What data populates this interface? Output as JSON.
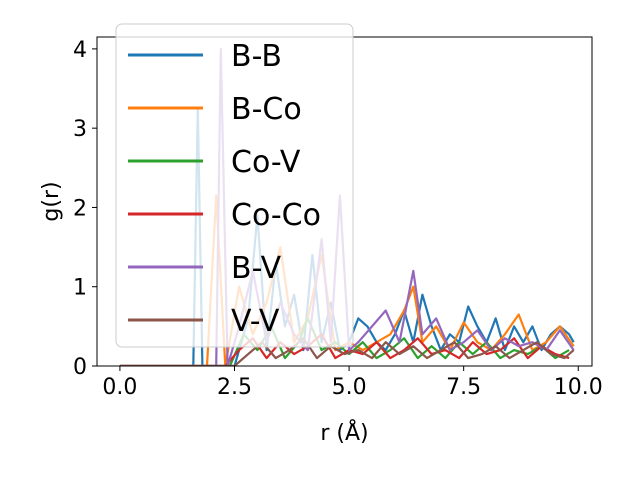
{
  "chart_data": {
    "type": "line",
    "title": "",
    "xlabel": "r (Å)",
    "ylabel": "g(r)",
    "xlim": [
      -0.5,
      10.3
    ],
    "ylim": [
      0,
      4.15
    ],
    "x_ticks": [
      0.0,
      2.5,
      5.0,
      7.5,
      10.0
    ],
    "x_tick_labels": [
      "0.0",
      "2.5",
      "5.0",
      "7.5",
      "10.0"
    ],
    "y_ticks": [
      0,
      1,
      2,
      3,
      4
    ],
    "y_tick_labels": [
      "0",
      "1",
      "2",
      "3",
      "4"
    ],
    "grid": false,
    "legend_position": "top-left",
    "series": [
      {
        "name": "B-B",
        "color": "#1f77b4",
        "x": [
          0,
          1.6,
          1.7,
          1.8,
          2.0,
          2.2,
          2.5,
          2.8,
          3.0,
          3.2,
          3.4,
          3.6,
          3.8,
          4.0,
          4.2,
          4.4,
          4.6,
          4.8,
          5.0,
          5.2,
          5.4,
          5.6,
          5.8,
          6.0,
          6.2,
          6.4,
          6.6,
          6.8,
          7.0,
          7.2,
          7.4,
          7.6,
          7.8,
          8.0,
          8.2,
          8.4,
          8.6,
          8.8,
          9.0,
          9.2,
          9.4,
          9.6,
          9.8,
          9.9
        ],
        "y": [
          0,
          0,
          3.25,
          0,
          0,
          0,
          0,
          0.6,
          1.9,
          0.2,
          1.3,
          0.5,
          0.9,
          0.2,
          1.4,
          0.3,
          0.8,
          0.2,
          0.3,
          0.6,
          0.5,
          0.3,
          0.2,
          0.4,
          0.7,
          0.3,
          0.9,
          0.5,
          0.2,
          0.4,
          0.3,
          0.75,
          0.5,
          0.3,
          0.6,
          0.2,
          0.5,
          0.3,
          0.5,
          0.2,
          0.4,
          0.5,
          0.4,
          0.3
        ]
      },
      {
        "name": "B-Co",
        "color": "#ff7f0e",
        "x": [
          0,
          1.9,
          2.1,
          2.3,
          2.6,
          2.9,
          3.2,
          3.5,
          3.8,
          4.1,
          4.4,
          4.7,
          5.0,
          5.3,
          5.6,
          5.9,
          6.2,
          6.4,
          6.6,
          6.9,
          7.2,
          7.5,
          7.8,
          8.1,
          8.4,
          8.7,
          9.0,
          9.3,
          9.6,
          9.9
        ],
        "y": [
          0,
          0,
          2.15,
          0,
          1.0,
          0.4,
          0.8,
          1.5,
          0.3,
          0.6,
          1.4,
          0.2,
          0.3,
          0.2,
          0.3,
          0.4,
          0.7,
          1.0,
          0.3,
          0.5,
          0.2,
          0.55,
          0.3,
          0.2,
          0.4,
          0.65,
          0.2,
          0.3,
          0.5,
          0.25
        ]
      },
      {
        "name": "Co-V",
        "color": "#2ca02c",
        "x": [
          0,
          2.4,
          2.7,
          3.0,
          3.3,
          3.6,
          3.9,
          4.1,
          4.4,
          4.7,
          5.0,
          5.3,
          5.6,
          5.9,
          6.2,
          6.5,
          6.8,
          7.1,
          7.4,
          7.7,
          8.0,
          8.3,
          8.6,
          8.9,
          9.2,
          9.5,
          9.8
        ],
        "y": [
          0,
          0,
          0.4,
          0.2,
          0.5,
          0.1,
          0.3,
          0.6,
          0.2,
          0.3,
          0.15,
          0.3,
          0.1,
          0.2,
          0.35,
          0.1,
          0.25,
          0.1,
          0.3,
          0.15,
          0.3,
          0.1,
          0.2,
          0.15,
          0.25,
          0.1,
          0.2
        ]
      },
      {
        "name": "Co-Co",
        "color": "#d62728",
        "x": [
          0,
          2.3,
          2.6,
          2.9,
          3.2,
          3.5,
          3.8,
          4.1,
          4.4,
          4.7,
          5.0,
          5.3,
          5.6,
          5.9,
          6.2,
          6.5,
          6.8,
          7.1,
          7.4,
          7.7,
          8.0,
          8.3,
          8.6,
          8.9,
          9.2,
          9.5,
          9.8
        ],
        "y": [
          0,
          0,
          0.2,
          0.35,
          0.1,
          0.3,
          0.15,
          0.25,
          0.4,
          0.1,
          0.2,
          0.15,
          0.3,
          0.1,
          0.2,
          0.35,
          0.15,
          0.2,
          0.1,
          0.3,
          0.15,
          0.2,
          0.35,
          0.1,
          0.25,
          0.15,
          0.1
        ]
      },
      {
        "name": "B-V",
        "color": "#9467bd",
        "x": [
          0,
          2.1,
          2.2,
          2.35,
          2.6,
          2.9,
          3.2,
          3.5,
          3.8,
          4.1,
          4.4,
          4.6,
          4.8,
          5.0,
          5.2,
          5.5,
          5.8,
          6.1,
          6.4,
          6.6,
          6.9,
          7.2,
          7.5,
          7.8,
          8.1,
          8.4,
          8.7,
          9.0,
          9.3,
          9.6,
          9.9
        ],
        "y": [
          0,
          0,
          4.0,
          0,
          0.5,
          1.2,
          0.3,
          0.8,
          0.4,
          0.2,
          1.6,
          0.3,
          2.15,
          0.2,
          0.3,
          0.5,
          0.7,
          0.3,
          1.2,
          0.4,
          0.6,
          0.2,
          0.3,
          0.45,
          0.2,
          0.35,
          0.25,
          0.3,
          0.2,
          0.45,
          0.2
        ]
      },
      {
        "name": "V-V",
        "color": "#8c564b",
        "x": [
          0,
          2.5,
          2.8,
          3.1,
          3.4,
          3.7,
          4.0,
          4.3,
          4.6,
          4.9,
          5.2,
          5.5,
          5.8,
          6.1,
          6.4,
          6.7,
          7.0,
          7.3,
          7.6,
          7.9,
          8.2,
          8.5,
          8.8,
          9.1,
          9.4,
          9.7,
          9.9
        ],
        "y": [
          0,
          0,
          0.15,
          0.3,
          0.1,
          0.2,
          0.35,
          0.1,
          0.25,
          0.15,
          0.2,
          0.1,
          0.3,
          0.15,
          0.25,
          0.1,
          0.2,
          0.3,
          0.1,
          0.15,
          0.25,
          0.1,
          0.2,
          0.3,
          0.15,
          0.1,
          0.2
        ]
      }
    ]
  }
}
